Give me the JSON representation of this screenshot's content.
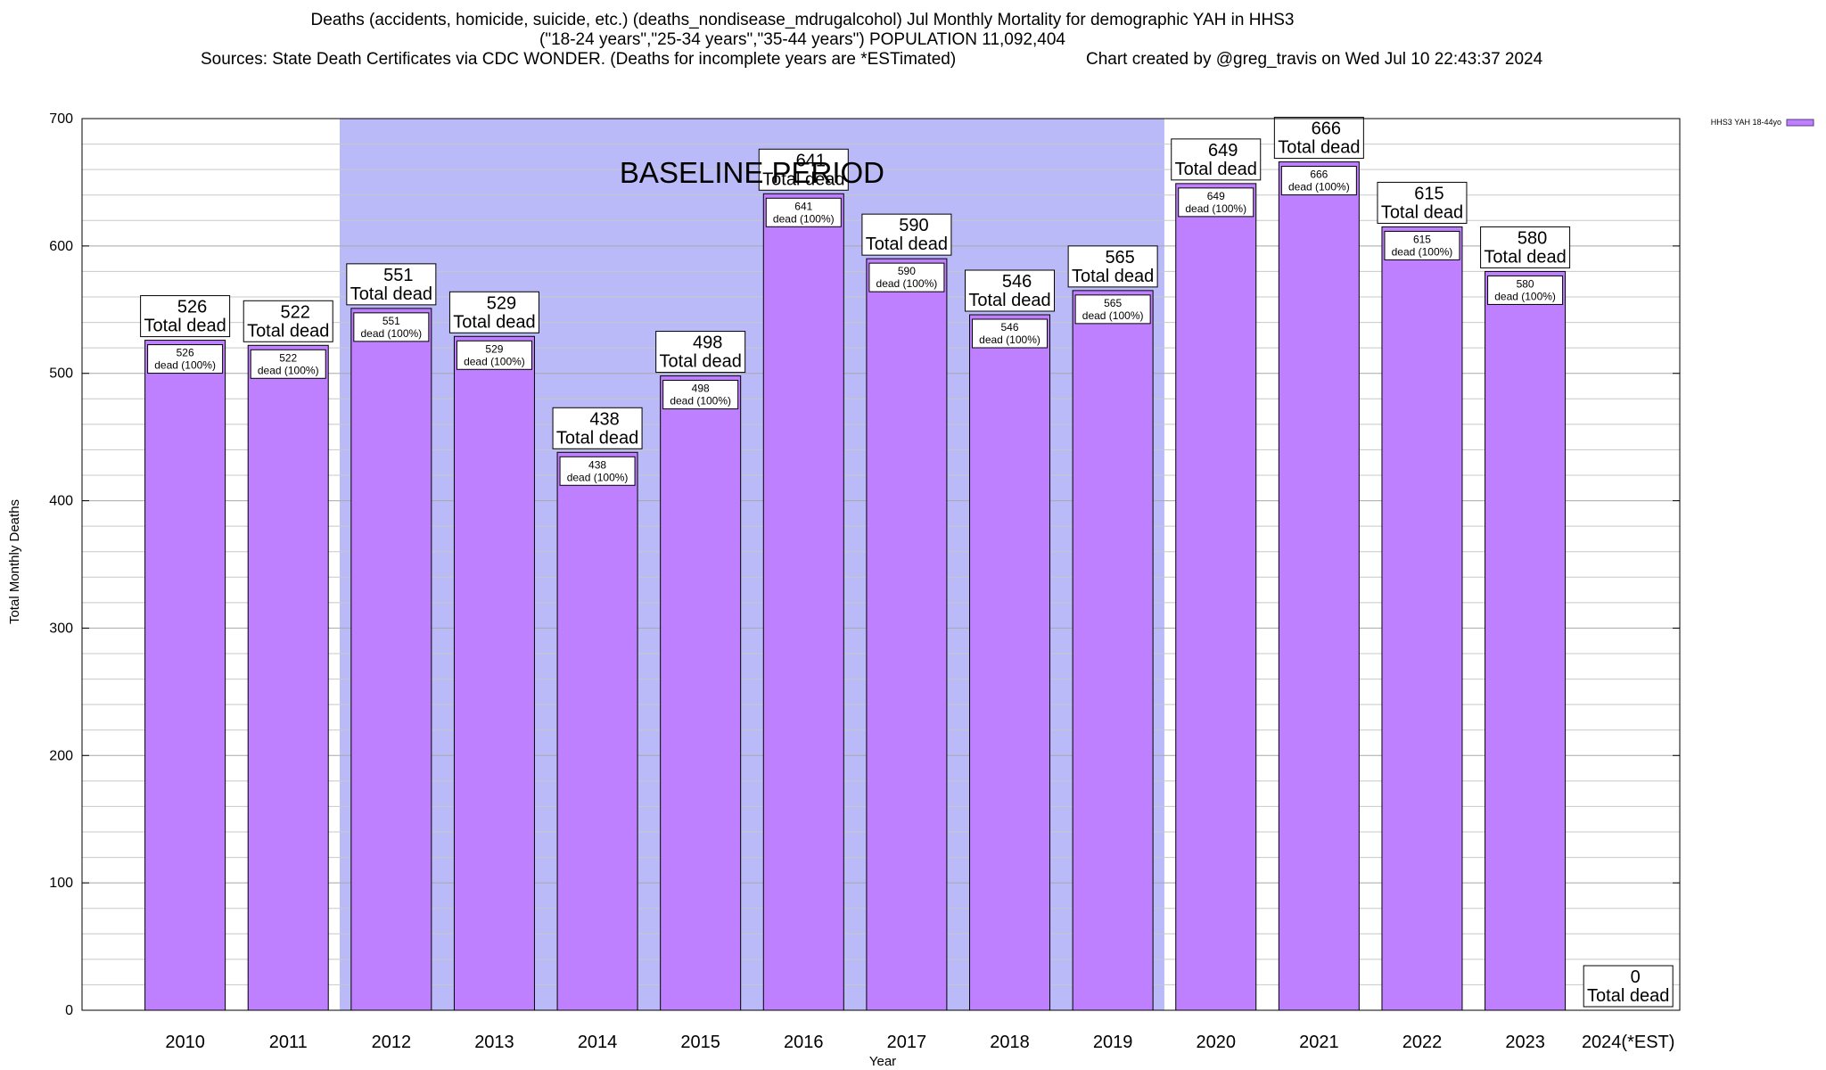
{
  "title": {
    "line1": "Deaths (accidents, homicide, suicide, etc.) (deaths_nondisease_mdrugalcohol) Jul Monthly Mortality for demographic YAH in HHS3",
    "line2": "(\"18-24 years\",\"25-34 years\",\"35-44 years\") POPULATION 11,092,404",
    "line3_left": "Sources: State Death Certificates via CDC WONDER. (Deaths for incomplete years are *ESTimated)",
    "line3_right": "Chart created by @greg_travis on Wed Jul 10 22:43:37 2024"
  },
  "chart_data": {
    "type": "bar",
    "xlabel": "Year",
    "ylabel": "Total Monthly Deaths",
    "ylim": [
      0,
      700
    ],
    "yticks": [
      0,
      100,
      200,
      300,
      400,
      500,
      600,
      700
    ],
    "categories": [
      "2010",
      "2011",
      "2012",
      "2013",
      "2014",
      "2015",
      "2016",
      "2017",
      "2018",
      "2019",
      "2020",
      "2021",
      "2022",
      "2023",
      "2024(*EST)"
    ],
    "series": [
      {
        "name": "HHS3 YAH 18-44yo",
        "values": [
          526,
          522,
          551,
          529,
          438,
          498,
          641,
          590,
          546,
          565,
          649,
          666,
          615,
          580,
          0
        ]
      }
    ],
    "top_label_suffix": "Total dead",
    "inner_label_suffix": "dead (100%)",
    "baseline_period": {
      "label": "BASELINE PERIOD",
      "from": "2012",
      "to": "2019"
    },
    "colors": {
      "bar": "#bf80ff",
      "baseline": "#babaf8",
      "legend_swatch": "#bf80ff"
    },
    "legend_position": "top-right",
    "grid": true
  }
}
